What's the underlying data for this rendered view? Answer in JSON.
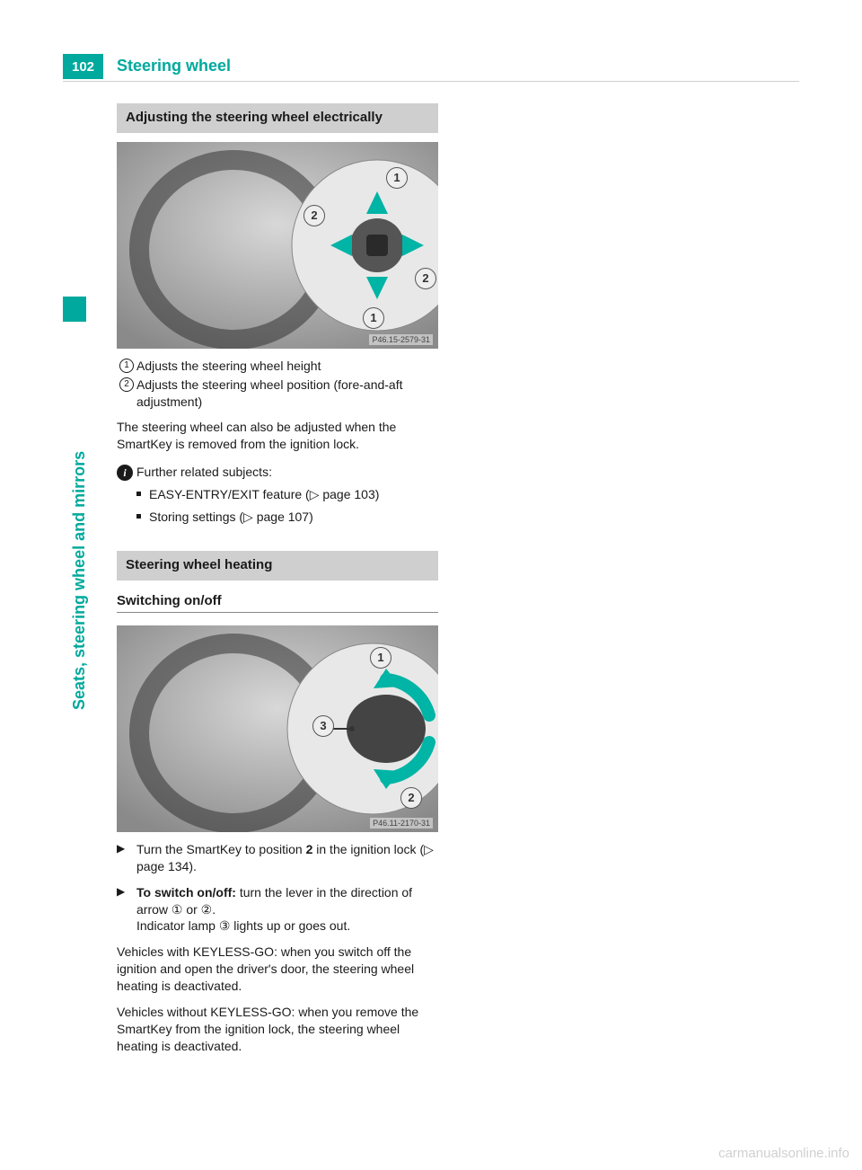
{
  "colors": {
    "accent": "#00a99d",
    "heading_bg": "#cfcfcf",
    "text": "#1a1a1a",
    "rule": "#cfcfcf",
    "watermark": "#d0d0d0",
    "figure_bg": "#a8a8a8"
  },
  "page": {
    "number": "102",
    "title": "Steering wheel",
    "side_label": "Seats, steering wheel and mirrors"
  },
  "section1": {
    "heading": "Adjusting the steering wheel electrically",
    "figure_code": "P46.15-2579-31",
    "legend": [
      {
        "num": "1",
        "text": "Adjusts the steering wheel height"
      },
      {
        "num": "2",
        "text": "Adjusts the steering wheel position (fore-and-aft adjustment)"
      }
    ],
    "para": "The steering wheel can also be adjusted when the SmartKey is removed from the ignition lock.",
    "info_label": "Further related subjects:",
    "bullets": [
      "EASY-ENTRY/EXIT feature (▷ page 103)",
      "Storing settings (▷ page 107)"
    ]
  },
  "section2": {
    "heading": "Steering wheel heating",
    "subheading": "Switching on/off",
    "figure_code": "P46.11-2170-31",
    "steps": [
      {
        "html": "Turn the SmartKey to position <b>2</b> in the ignition lock (▷ page 134)."
      },
      {
        "html": "<b>To switch on/off:</b> turn the lever in the direction of arrow ① or ②.<br>Indicator lamp ③ lights up or goes out."
      }
    ],
    "para1": "Vehicles with KEYLESS-GO: when you switch off the ignition and open the driver's door, the steering wheel heating is deactivated.",
    "para2": "Vehicles without KEYLESS-GO: when you remove the SmartKey from the ignition lock, the steering wheel heating is deactivated."
  },
  "watermark": "carmanualsonline.info"
}
